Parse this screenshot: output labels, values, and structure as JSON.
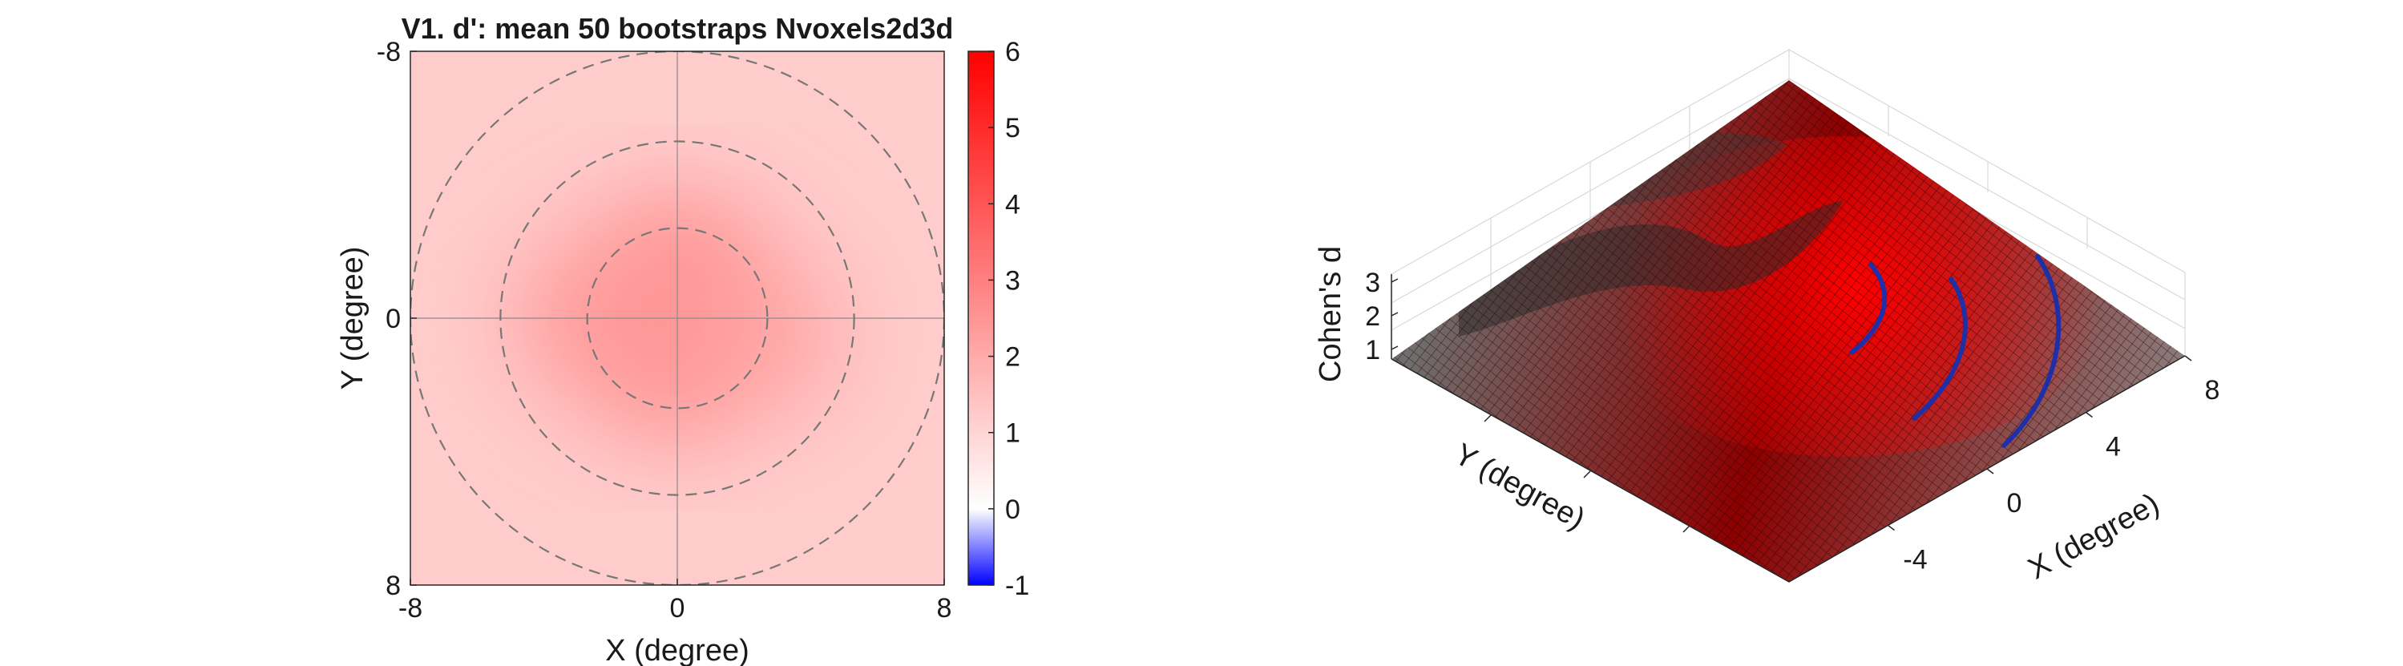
{
  "chart_data": [
    {
      "type": "heatmap",
      "title": "V1. d': mean 50 bootstraps Nvoxels2d3d",
      "xlabel": "X (degree)",
      "ylabel": "Y (degree)",
      "xlim": [
        -8,
        8
      ],
      "ylim": [
        -8,
        8
      ],
      "y_direction": "reversed",
      "xticks": [
        "-8",
        "0",
        "8"
      ],
      "yticks": [
        "-8",
        "0",
        "8"
      ],
      "crosshair_lines": true,
      "ring_radii_deg": [
        2.7,
        5.3,
        8.0
      ],
      "ring_style": "dashed-gray",
      "colorbar": {
        "min": -1,
        "max": 6,
        "ticks": [
          "6",
          "5",
          "4",
          "3",
          "2",
          "1",
          "0",
          "-1"
        ],
        "colormap": "blue-white-red",
        "low_color": "#0000ff",
        "mid_color": "#ffffff",
        "high_color": "#ff0000"
      },
      "field": {
        "background_value": 1.2,
        "peak_value": 2.8,
        "peak_center": [
          0,
          0
        ],
        "extra_lobes": [
          {
            "center": [
              -2.5,
              0
            ],
            "value": 2.4
          },
          {
            "center": [
              2.5,
              0.5
            ],
            "value": 2.2
          }
        ]
      }
    },
    {
      "type": "surface",
      "zlabel": "Cohen's d",
      "xlabel": "X (degree)",
      "ylabel": "Y (degree)",
      "zticks": [
        "3",
        "2",
        "1"
      ],
      "xticks": [
        "-4",
        "0",
        "4",
        "8"
      ],
      "colormap": "black-to-red",
      "surface_color_low": "#000000",
      "surface_color_high": "#ff0000",
      "mesh_lines": true,
      "overlay": "blue-eccentricity-arcs",
      "overlay_color": "#1f2fa8",
      "overlay_count": 3
    }
  ]
}
